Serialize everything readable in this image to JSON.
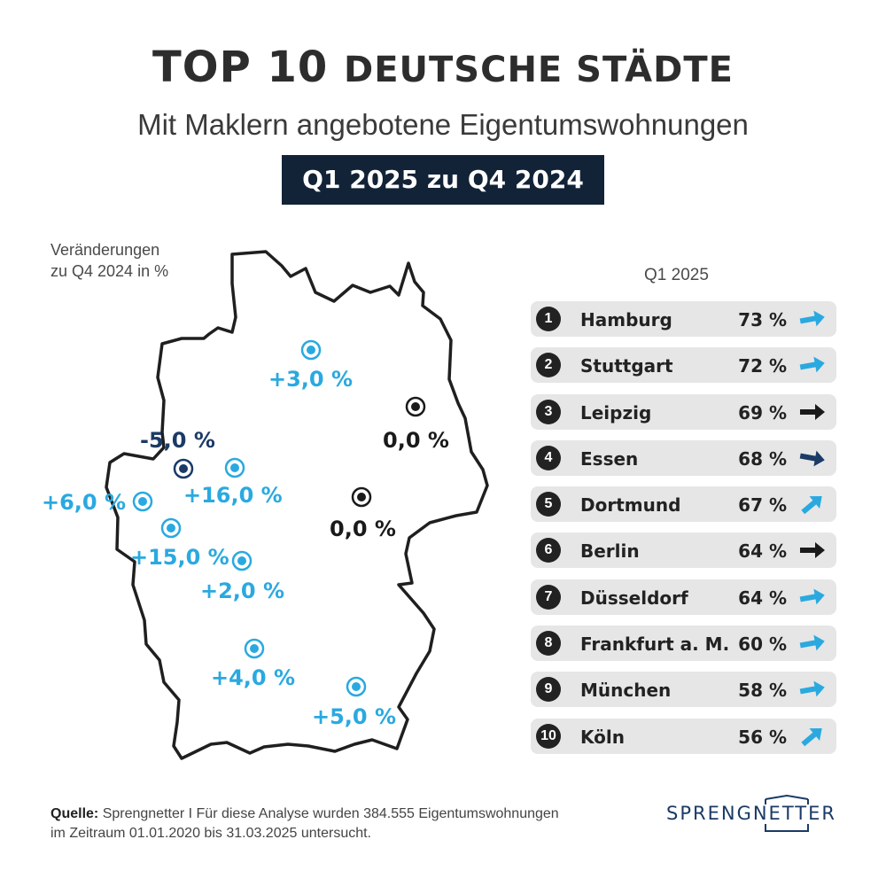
{
  "header": {
    "title_main": "TOP 10",
    "title_rest": "DEUTSCHE STÄDTE",
    "subtitle": "Mit Maklern angebotene Eigentumswohnungen",
    "period": "Q1 2025 zu Q4 2024"
  },
  "map": {
    "legend_note_line1": "Veränderungen",
    "legend_note_line2": "zu Q4 2024 in %",
    "colors": {
      "increase": "#2aa9e0",
      "decrease": "#1b3a66",
      "unchanged": "#1a1a1a"
    },
    "labels": [
      {
        "text": "+3,0 %",
        "trend": "increase"
      },
      {
        "text": "0,0 %",
        "trend": "unchanged"
      },
      {
        "text": "-5,0 %",
        "trend": "decrease"
      },
      {
        "text": "+16,0 %",
        "trend": "increase"
      },
      {
        "text": "+6,0 %",
        "trend": "increase"
      },
      {
        "text": "0,0 %",
        "trend": "unchanged"
      },
      {
        "text": "+15,0 %",
        "trend": "increase"
      },
      {
        "text": "+2,0 %",
        "trend": "increase"
      },
      {
        "text": "+4,0 %",
        "trend": "increase"
      },
      {
        "text": "+5,0 %",
        "trend": "increase"
      }
    ]
  },
  "ranking": {
    "column_header": "Q1 2025",
    "items": [
      {
        "rank": "1",
        "city": "Hamburg",
        "value": "73 %",
        "arrow": "flat-up",
        "arrow_color": "#2aa9e0"
      },
      {
        "rank": "2",
        "city": "Stuttgart",
        "value": "72 %",
        "arrow": "flat-up",
        "arrow_color": "#2aa9e0"
      },
      {
        "rank": "3",
        "city": "Leipzig",
        "value": "69 %",
        "arrow": "flat",
        "arrow_color": "#1a1a1a"
      },
      {
        "rank": "4",
        "city": "Essen",
        "value": "68 %",
        "arrow": "flat-down",
        "arrow_color": "#1b3a66"
      },
      {
        "rank": "5",
        "city": "Dortmund",
        "value": "67 %",
        "arrow": "up",
        "arrow_color": "#2aa9e0"
      },
      {
        "rank": "6",
        "city": "Berlin",
        "value": "64 %",
        "arrow": "flat",
        "arrow_color": "#1a1a1a"
      },
      {
        "rank": "7",
        "city": "Düsseldorf",
        "value": "64 %",
        "arrow": "flat-up",
        "arrow_color": "#2aa9e0"
      },
      {
        "rank": "8",
        "city": "Frankfurt a. M.",
        "value": "60 %",
        "arrow": "flat-up",
        "arrow_color": "#2aa9e0"
      },
      {
        "rank": "9",
        "city": "München",
        "value": "58 %",
        "arrow": "flat-up",
        "arrow_color": "#2aa9e0"
      },
      {
        "rank": "10",
        "city": "Köln",
        "value": "56 %",
        "arrow": "up",
        "arrow_color": "#2aa9e0"
      }
    ]
  },
  "footer": {
    "source_label": "Quelle:",
    "source_text": "Sprengnetter I Für diese Analyse wurden 384.555 Eigentumswohnungen",
    "source_text2": "im Zeitraum 01.01.2020 bis 31.03.2025 untersucht.",
    "brand": "SPRENGNETTER"
  }
}
